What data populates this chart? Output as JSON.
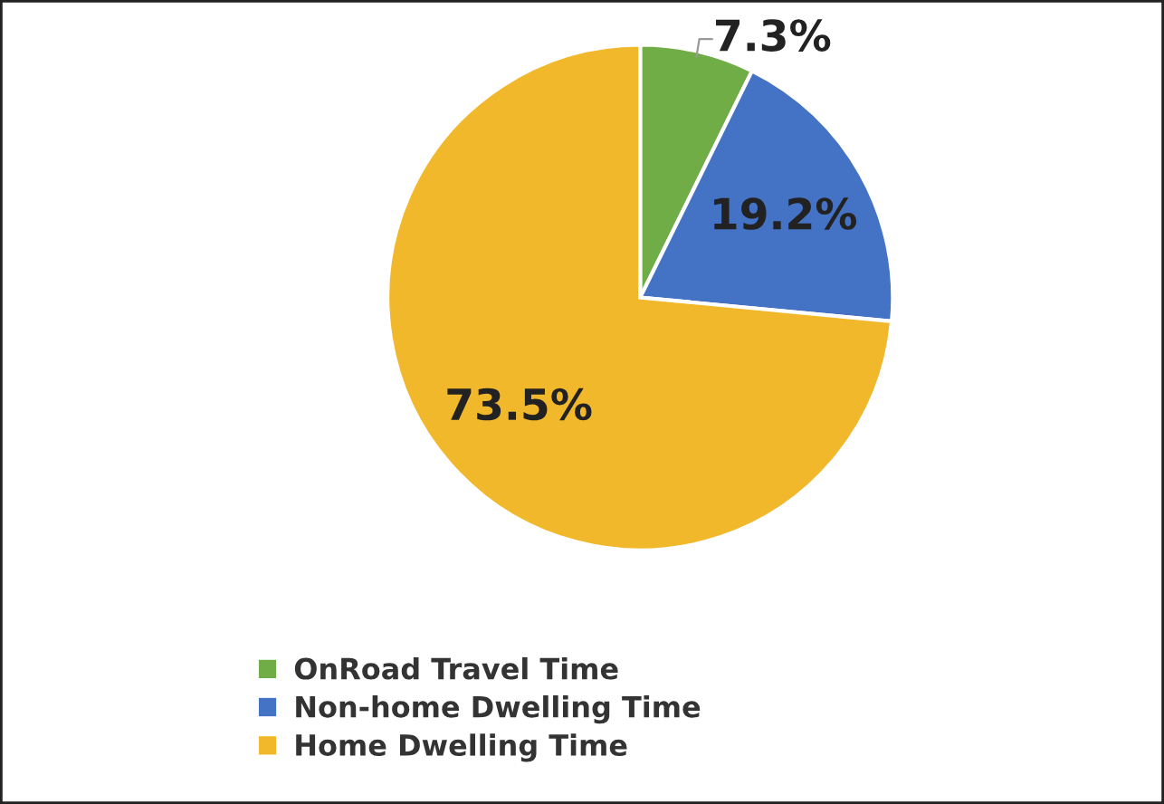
{
  "chart_data": {
    "type": "pie",
    "categories": [
      "OnRoad Travel Time",
      "Non-home Dwelling Time",
      "Home Dwelling Time"
    ],
    "values": [
      7.3,
      19.2,
      73.5
    ],
    "value_labels": [
      "7.3%",
      "19.2%",
      "73.5%"
    ],
    "colors": [
      "#70ad47",
      "#4472c4",
      "#f2b82c"
    ],
    "legend": "bottom left"
  }
}
